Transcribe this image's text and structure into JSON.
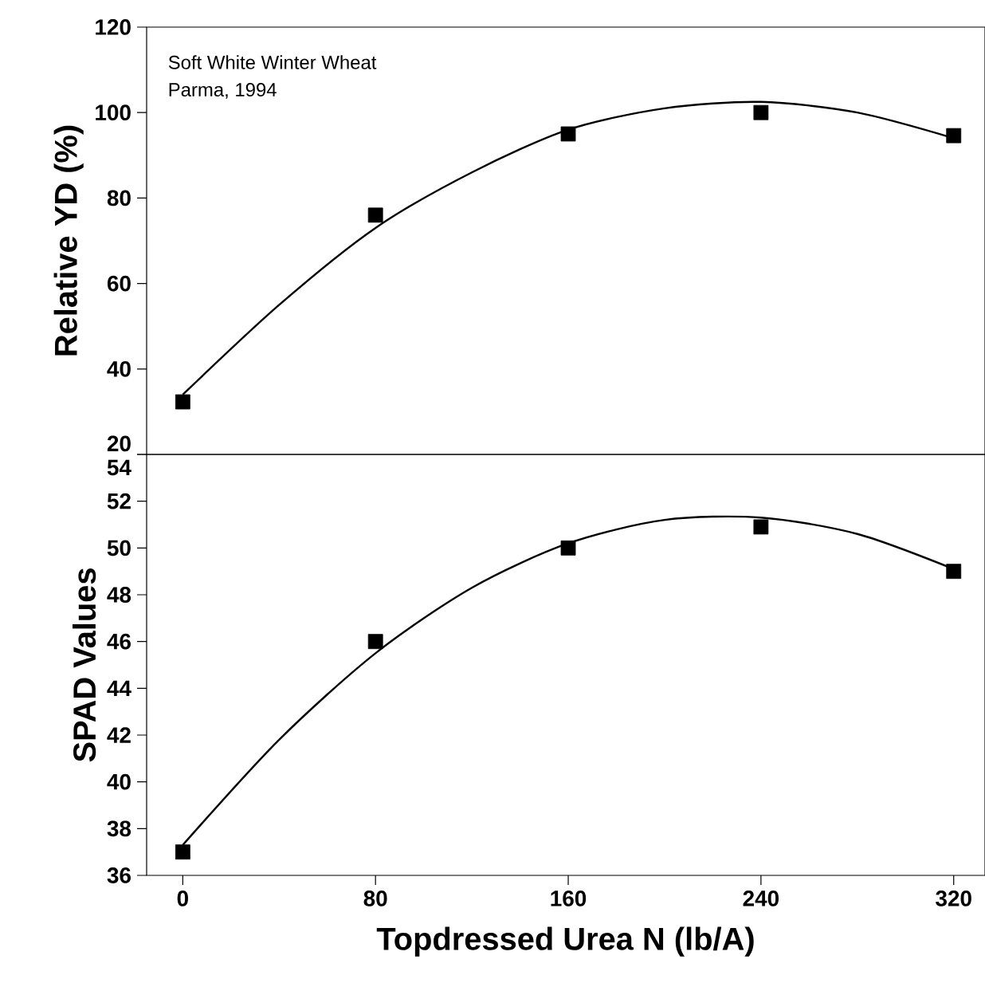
{
  "chart_data": [
    {
      "type": "scatter",
      "ylabel": "Relative YD (%)",
      "annotations": [
        "Soft White Winter Wheat",
        "Parma, 1994"
      ],
      "x": [
        0,
        80,
        160,
        240,
        320
      ],
      "xlim": [
        -15,
        333
      ],
      "ylim": [
        20,
        120
      ],
      "yticks": [
        20,
        40,
        60,
        80,
        100,
        120
      ],
      "tick_labels": "y",
      "marker": "square",
      "series": [
        {
          "color": "#000000",
          "values": [
            32.3,
            76,
            95,
            100,
            94.6
          ]
        },
        {
          "type": "line",
          "color": "#000000",
          "marker": "none",
          "x": [
            0,
            40,
            80,
            120,
            160,
            200,
            240,
            280,
            320
          ],
          "values": [
            34,
            55,
            73,
            86,
            96,
            101,
            102.5,
            100,
            94
          ]
        }
      ]
    },
    {
      "type": "scatter",
      "ylabel": "SPAD Values",
      "xlabel": "Topdressed Urea N (lb/A)",
      "x": [
        0,
        80,
        160,
        240,
        320
      ],
      "xlim": [
        -15,
        333
      ],
      "xticks": [
        0,
        80,
        160,
        240,
        320
      ],
      "ylim": [
        36,
        54
      ],
      "yticks": [
        36,
        38,
        40,
        42,
        44,
        46,
        48,
        50,
        52,
        54
      ],
      "marker": "square",
      "series": [
        {
          "color": "#000000",
          "values": [
            37,
            46,
            50,
            50.9,
            49
          ]
        },
        {
          "type": "line",
          "color": "#000000",
          "marker": "none",
          "x": [
            0,
            40,
            80,
            120,
            160,
            200,
            240,
            280,
            320
          ],
          "values": [
            37.3,
            41.8,
            45.5,
            48.3,
            50.2,
            51.2,
            51.3,
            50.6,
            49.1
          ]
        }
      ]
    }
  ]
}
